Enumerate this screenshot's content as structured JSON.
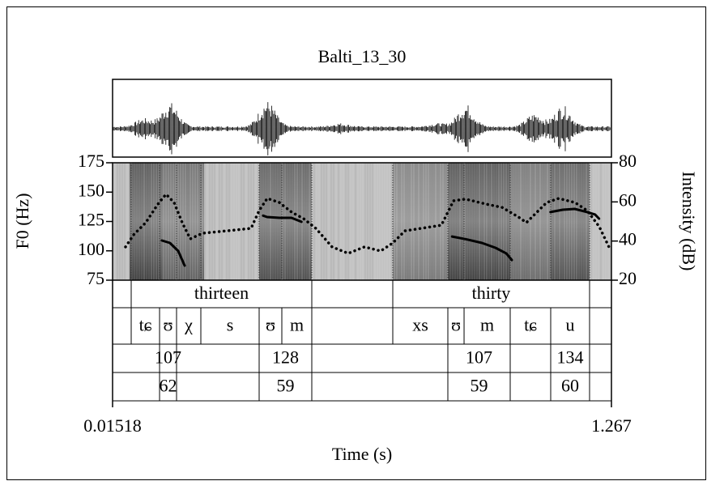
{
  "chart_data": {
    "type": "praat",
    "title": "Balti_13_30",
    "ylabel": "F0 (Hz)",
    "y2label": "Intensity (dB)",
    "xlabel": "Time (s)",
    "xlim": [
      0.01518,
      1.267
    ],
    "xticks": [
      0.01518,
      1.267
    ],
    "ylim": [
      75,
      175
    ],
    "yticks": [
      75,
      100,
      125,
      150,
      175
    ],
    "y2lim": [
      20,
      80
    ],
    "y2ticks": [
      20,
      40,
      60,
      80
    ],
    "series": [
      {
        "name": "F0",
        "color": "#000000",
        "x": [
          0.139,
          0.159,
          0.18,
          0.196,
          null,
          0.393,
          0.403,
          0.434,
          0.464,
          0.489,
          null,
          0.867,
          0.901,
          0.942,
          0.976,
          1.003,
          1.017,
          null,
          1.114,
          1.145,
          1.175,
          1.206,
          1.226,
          1.236
        ],
        "values": [
          108.8,
          106.7,
          99.8,
          87.4,
          null,
          130,
          128.8,
          128.1,
          128.1,
          124.7,
          null,
          112.2,
          110,
          106.7,
          102.6,
          97.8,
          92.2,
          null,
          133,
          135,
          135.7,
          133,
          130.9,
          127.4
        ]
      },
      {
        "name": "Intensity",
        "color": "#000000",
        "axis": "y2",
        "x": [
          0.0477,
          0.068,
          0.0985,
          0.129,
          0.1493,
          0.1696,
          0.1899,
          0.2103,
          0.2407,
          0.3017,
          0.3627,
          0.383,
          0.4033,
          0.4338,
          0.4643,
          0.4948,
          0.5252,
          0.5659,
          0.6065,
          0.6472,
          0.6878,
          0.7183,
          0.7488,
          0.7894,
          0.8402,
          0.8707,
          0.9012,
          0.952,
          0.9926,
          1.0332,
          1.0536,
          1.0739,
          1.1044,
          1.1349,
          1.1755,
          1.206,
          1.2365,
          1.2608
        ],
        "values": [
          37,
          43.2,
          49.4,
          58.9,
          63.9,
          59.7,
          49.4,
          41.1,
          44,
          45.2,
          46.5,
          55.6,
          61.8,
          59.7,
          54.8,
          51.4,
          46.5,
          37,
          33.7,
          37,
          34.9,
          39,
          45.2,
          46.5,
          48.1,
          60.6,
          61.4,
          58.9,
          57.2,
          52.3,
          49.4,
          53.5,
          59.7,
          61.8,
          59.7,
          55.6,
          47.3,
          37
        ]
      }
    ],
    "tiers": [
      {
        "boundaries": [
          0.01518,
          0.0619,
          0.5151,
          0.7183,
          1.2121,
          1.267
        ],
        "labels": [
          null,
          "thirteen",
          null,
          "thirty",
          null
        ]
      },
      {
        "boundaries": [
          0.01518,
          0.0619,
          0.1331,
          0.1757,
          0.2367,
          0.383,
          0.4399,
          0.5151,
          0.7183,
          0.8565,
          0.8972,
          1.013,
          1.1146,
          1.2121,
          1.267
        ],
        "labels": [
          null,
          "tɕ",
          "ʊ",
          "χ",
          "s",
          "ʊ",
          "m",
          null,
          "xs",
          "ʊ",
          "m",
          "tɕ",
          "u",
          null
        ]
      },
      {
        "boundaries": [
          0.01518,
          0.1331,
          0.1757,
          0.383,
          0.5151,
          0.8565,
          1.013,
          1.1146,
          1.2121,
          1.267
        ],
        "labels": [
          null,
          "107",
          null,
          "128",
          null,
          "107",
          null,
          "134",
          null
        ]
      },
      {
        "boundaries": [
          0.01518,
          0.1331,
          0.1757,
          0.383,
          0.5151,
          0.8565,
          1.013,
          1.1146,
          1.2121,
          1.267
        ],
        "labels": [
          null,
          "62",
          null,
          "59",
          null,
          "59",
          null,
          "60",
          null
        ]
      }
    ]
  }
}
